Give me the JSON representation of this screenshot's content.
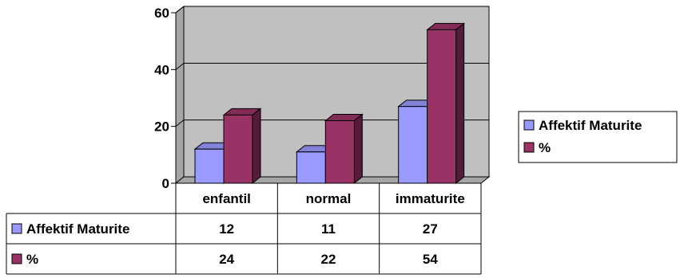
{
  "chart_data": {
    "type": "bar",
    "categories": [
      "enfantil",
      "normal",
      "immaturite"
    ],
    "series": [
      {
        "name": "Affektif Maturite",
        "values": [
          12,
          11,
          27
        ],
        "color": "#9999ff"
      },
      {
        "name": "%",
        "values": [
          24,
          22,
          54
        ],
        "color": "#993366"
      }
    ],
    "ylim": [
      0,
      60
    ],
    "yticks": [
      0,
      20,
      40,
      60
    ],
    "grid": true,
    "plot_background": "#c0c0c0",
    "legend_position": "right",
    "data_table": true,
    "style": "3d-clustered-columns"
  }
}
